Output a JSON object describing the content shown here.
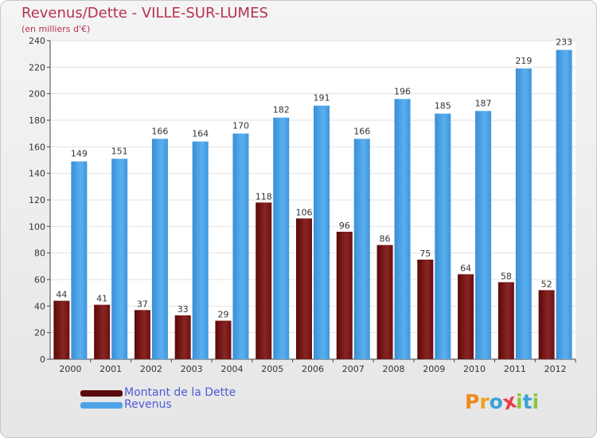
{
  "title": "Revenus/Dette - VILLE-SUR-LUMES",
  "subtitle": "(en milliers d'€)",
  "colors": {
    "debt": "#7a1515",
    "revenue": "#4da3e6",
    "title": "#b4324e",
    "legend_text": "#4b5bd6"
  },
  "legend": [
    {
      "label": "Montant de la Dette",
      "color": "#5a0a0a"
    },
    {
      "label": "Revenus",
      "color": "#4da3e6"
    }
  ],
  "logo": {
    "text": "Proxiti",
    "letters": [
      "P",
      "r",
      "o",
      "x",
      "i",
      "t",
      "i"
    ],
    "colors": [
      "#f08a1c",
      "#f0a020",
      "#39a0d8",
      "#e83a4a",
      "#8cc63e",
      "#39a0d8",
      "#8cc63e"
    ]
  },
  "chart_data": {
    "type": "bar",
    "title": "Revenus/Dette - VILLE-SUR-LUMES",
    "ylabel": "(en milliers d'€)",
    "xlabel": "",
    "categories": [
      "2000",
      "2001",
      "2002",
      "2003",
      "2004",
      "2005",
      "2006",
      "2007",
      "2008",
      "2009",
      "2010",
      "2011",
      "2012"
    ],
    "series": [
      {
        "name": "Montant de la Dette",
        "values": [
          44,
          41,
          37,
          33,
          29,
          118,
          106,
          96,
          86,
          75,
          64,
          58,
          52
        ]
      },
      {
        "name": "Revenus",
        "values": [
          149,
          151,
          166,
          164,
          170,
          182,
          191,
          166,
          196,
          185,
          187,
          219,
          233
        ]
      }
    ],
    "ylim": [
      0,
      240
    ],
    "yticks": [
      0,
      20,
      40,
      60,
      80,
      100,
      120,
      140,
      160,
      180,
      200,
      220,
      240
    ],
    "grid": true,
    "legend_position": "bottom-left"
  }
}
